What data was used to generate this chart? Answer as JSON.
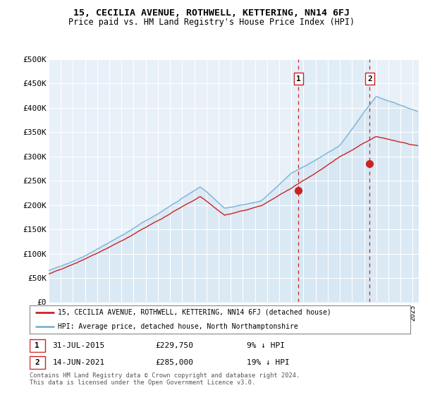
{
  "title": "15, CECILIA AVENUE, ROTHWELL, KETTERING, NN14 6FJ",
  "subtitle": "Price paid vs. HM Land Registry's House Price Index (HPI)",
  "ylabel_ticks": [
    "£0",
    "£50K",
    "£100K",
    "£150K",
    "£200K",
    "£250K",
    "£300K",
    "£350K",
    "£400K",
    "£450K",
    "£500K"
  ],
  "ytick_vals": [
    0,
    50000,
    100000,
    150000,
    200000,
    250000,
    300000,
    350000,
    400000,
    450000,
    500000
  ],
  "ylim": [
    0,
    500000
  ],
  "xlim_start": 1995.0,
  "xlim_end": 2025.5,
  "hpi_color": "#7ab4d8",
  "hpi_fill_color": "#c8dff0",
  "price_color": "#cc2222",
  "marker_color": "#cc2222",
  "dashed_line_color": "#cc2222",
  "shade_between_color": "#d6e8f5",
  "legend_house_label": "15, CECILIA AVENUE, ROTHWELL, KETTERING, NN14 6FJ (detached house)",
  "legend_hpi_label": "HPI: Average price, detached house, North Northamptonshire",
  "sale1_date": "31-JUL-2015",
  "sale1_price": "£229,750",
  "sale1_pct": "9% ↓ HPI",
  "sale1_year": 2015.58,
  "sale1_price_val": 229750,
  "sale2_date": "14-JUN-2021",
  "sale2_price": "£285,000",
  "sale2_pct": "19% ↓ HPI",
  "sale2_year": 2021.45,
  "sale2_price_val": 285000,
  "footer": "Contains HM Land Registry data © Crown copyright and database right 2024.\nThis data is licensed under the Open Government Licence v3.0.",
  "bg_color": "#ffffff",
  "plot_bg_color": "#e8f0f8",
  "grid_color": "#ffffff"
}
